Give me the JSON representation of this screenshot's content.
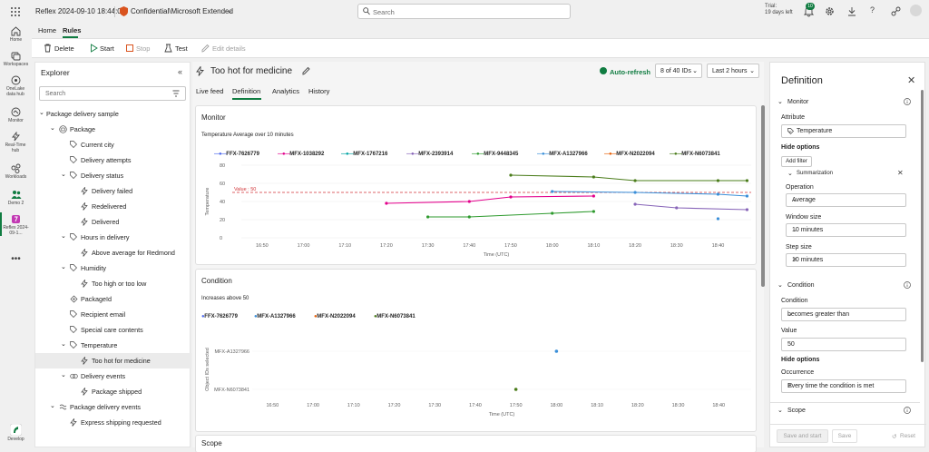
{
  "topbar": {
    "app_title": "Reflex 2024-09-10 18:44:02",
    "sensitivity": "Confidential\\Microsoft Extended",
    "search_placeholder": "Search",
    "trial_line1": "Trial:",
    "trial_line2": "19 days left",
    "notification_count": "10"
  },
  "rail": [
    {
      "label": "Home",
      "icon": "home-icon"
    },
    {
      "label": "Workspaces",
      "icon": "workspaces-icon"
    },
    {
      "label": "OneLake data hub",
      "icon": "onelake-icon"
    },
    {
      "label": "Monitor",
      "icon": "monitor-icon"
    },
    {
      "label": "Real-Time hub",
      "icon": "realtime-icon"
    },
    {
      "label": "Workloads",
      "icon": "workloads-icon"
    },
    {
      "label": "Demo 2",
      "icon": "demo-icon"
    },
    {
      "label": "Reflex 2024-09-1...",
      "icon": "reflex-icon"
    },
    {
      "label": "Develop",
      "icon": "develop-icon"
    }
  ],
  "tabs": {
    "home": "Home",
    "rules": "Rules"
  },
  "toolbar": {
    "delete": "Delete",
    "start": "Start",
    "stop": "Stop",
    "test": "Test",
    "edit_details": "Edit details"
  },
  "explorer": {
    "title": "Explorer",
    "search_placeholder": "Search",
    "items": [
      {
        "label": "Package delivery sample",
        "level": 0,
        "icon": "caret",
        "selected": false
      },
      {
        "label": "Package",
        "level": 1,
        "icon": "object",
        "selected": false
      },
      {
        "label": "Current city",
        "level": 2,
        "icon": "tag",
        "selected": false
      },
      {
        "label": "Delivery attempts",
        "level": 2,
        "icon": "tag",
        "selected": false
      },
      {
        "label": "Delivery status",
        "level": 2,
        "icon": "tag",
        "selected": false
      },
      {
        "label": "Delivery failed",
        "level": 3,
        "icon": "bolt",
        "selected": false
      },
      {
        "label": "Redelivered",
        "level": 3,
        "icon": "bolt",
        "selected": false
      },
      {
        "label": "Delivered",
        "level": 3,
        "icon": "bolt",
        "selected": false
      },
      {
        "label": "Hours in delivery",
        "level": 2,
        "icon": "tag",
        "selected": false
      },
      {
        "label": "Above average for Redmond",
        "level": 3,
        "icon": "bolt",
        "selected": false
      },
      {
        "label": "Humidity",
        "level": 2,
        "icon": "tag",
        "selected": false
      },
      {
        "label": "Too high or too low",
        "level": 3,
        "icon": "bolt",
        "selected": false
      },
      {
        "label": "PackageId",
        "level": 2,
        "icon": "id",
        "selected": false
      },
      {
        "label": "Recipient email",
        "level": 2,
        "icon": "tag",
        "selected": false
      },
      {
        "label": "Special care contents",
        "level": 2,
        "icon": "tag",
        "selected": false
      },
      {
        "label": "Temperature",
        "level": 2,
        "icon": "tag",
        "selected": false
      },
      {
        "label": "Too hot for medicine",
        "level": 3,
        "icon": "bolt",
        "selected": true
      },
      {
        "label": "Delivery events",
        "level": 2,
        "icon": "events",
        "selected": false
      },
      {
        "label": "Package shipped",
        "level": 3,
        "icon": "bolt",
        "selected": false
      },
      {
        "label": "Package delivery events",
        "level": 1,
        "icon": "stream",
        "selected": false
      },
      {
        "label": "Express shipping requested",
        "level": 2,
        "icon": "bolt",
        "selected": false
      }
    ]
  },
  "main": {
    "rule_title": "Too hot for medicine",
    "auto_refresh": "Auto-refresh",
    "ids_filter": "8 of 40 IDs",
    "time_filter": "Last 2 hours",
    "subtabs": [
      "Live feed",
      "Definition",
      "Analytics",
      "History"
    ],
    "active_subtab": "Definition",
    "monitor_title": "Monitor",
    "condition_title": "Condition",
    "scope_title": "Scope"
  },
  "chart_data": [
    {
      "type": "line",
      "title": "Monitor",
      "subtitle": "Temperature Average over 10 minutes",
      "xlabel": "Time (UTC)",
      "ylabel": "Temperature",
      "ylim": [
        0,
        80
      ],
      "yticks": [
        0,
        20,
        40,
        60,
        80
      ],
      "x_ticks": [
        "16:50",
        "17:00",
        "17:10",
        "17:20",
        "17:30",
        "17:40",
        "17:50",
        "18:00",
        "18:10",
        "18:20",
        "18:30",
        "18:40"
      ],
      "threshold": {
        "label": "Value : 50",
        "value": 50,
        "color": "#d13438"
      },
      "legend_position": "top",
      "grid": true,
      "series": [
        {
          "name": "FFX-7626779",
          "color": "#4f6bed",
          "points": []
        },
        {
          "name": "MFX-1038292",
          "color": "#e3008c",
          "points": [
            [
              "17:20",
              38
            ],
            [
              "17:40",
              40
            ],
            [
              "17:50",
              45
            ],
            [
              "18:10",
              46
            ]
          ]
        },
        {
          "name": "MFX-1767216",
          "color": "#00a5a5",
          "points": []
        },
        {
          "name": "MFX-2393914",
          "color": "#8764b8",
          "points": [
            [
              "18:20",
              37
            ],
            [
              "18:30",
              33
            ],
            [
              "18:47",
              31
            ]
          ]
        },
        {
          "name": "MFX-9448345",
          "color": "#2e9a2e",
          "points": [
            [
              "17:30",
              23
            ],
            [
              "17:40",
              23
            ],
            [
              "18:00",
              27
            ],
            [
              "18:10",
              29
            ]
          ]
        },
        {
          "name": "MFX-A1327966",
          "color": "#3a8fd9",
          "points": [
            [
              "18:00",
              51
            ],
            [
              "18:20",
              50
            ],
            [
              "18:40",
              48
            ],
            [
              "18:47",
              46
            ],
            [
              "18:40",
              21
            ]
          ]
        },
        {
          "name": "MFX-N2022094",
          "color": "#e8620a",
          "points": []
        },
        {
          "name": "MFX-N6073841",
          "color": "#4a7c1a",
          "points": [
            [
              "17:50",
              69
            ],
            [
              "18:10",
              67
            ],
            [
              "18:20",
              63
            ],
            [
              "18:40",
              63
            ],
            [
              "18:47",
              63
            ]
          ]
        }
      ]
    },
    {
      "type": "scatter",
      "title": "Condition",
      "subtitle": "Increases above 50",
      "xlabel": "Time (UTC)",
      "ylabel": "Object IDs selected",
      "x_ticks": [
        "16:50",
        "17:00",
        "17:10",
        "17:20",
        "17:30",
        "17:40",
        "17:50",
        "18:00",
        "18:10",
        "18:20",
        "18:30",
        "18:40"
      ],
      "y_categories": [
        "MFX-A1327966",
        "MFX-N6073841"
      ],
      "legend_position": "top",
      "series": [
        {
          "name": "FFX-7626779",
          "color": "#4f6bed",
          "points": []
        },
        {
          "name": "MFX-A1327966",
          "color": "#3a8fd9",
          "points": [
            [
              "18:00",
              "MFX-A1327966"
            ]
          ]
        },
        {
          "name": "MFX-N2022094",
          "color": "#e8620a",
          "points": []
        },
        {
          "name": "MFX-N6073841",
          "color": "#4a7c1a",
          "points": [
            [
              "17:50",
              "MFX-N6073841"
            ]
          ]
        }
      ]
    }
  ],
  "definition": {
    "title": "Definition",
    "monitor_section": "Monitor",
    "attribute_label": "Attribute",
    "attribute_value": "Temperature",
    "hide_options": "Hide options",
    "add_filter": "Add filter",
    "summarization": "Summarization",
    "operation_label": "Operation",
    "operation_value": "Average",
    "window_size_label": "Window size",
    "window_size_value": "10 minutes",
    "step_size_label": "Step size",
    "step_size_value": "10 minutes",
    "condition_section": "Condition",
    "condition_label": "Condition",
    "condition_value": "becomes greater than",
    "value_label": "Value",
    "value_value": "50",
    "hide_options_2": "Hide options",
    "occurrence_label": "Occurrence",
    "occurrence_value": "Every time the condition is met",
    "scope_section": "Scope",
    "save_and_start": "Save and start",
    "save": "Save",
    "reset": "Reset"
  }
}
